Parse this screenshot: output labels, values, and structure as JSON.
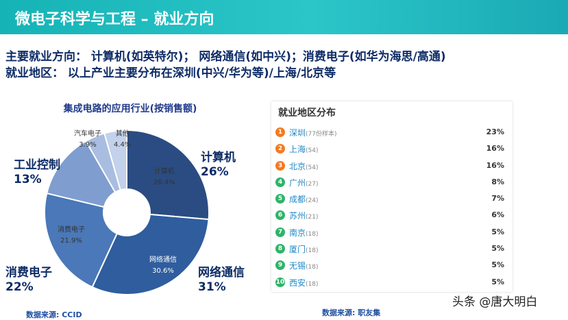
{
  "header": {
    "title": "微电子科学与工程 – 就业方向"
  },
  "intro": {
    "line1": "主要就业方向： 计算机(如英特尔)； 网络通信(如中兴)；消费电子(如华为海思/高通)",
    "line2": "就业地区： 以上产业主要分布在深圳(中兴/华为等)/上海/北京等"
  },
  "chart_data": [
    {
      "type": "pie",
      "variant": "donut",
      "title": "集成电路的应用行业(按销售额)",
      "slices": [
        {
          "label": "计算机",
          "value": 26.4,
          "value_text": "26.4%",
          "big_label": "计算机",
          "big_value": "26%",
          "color": "#2b4c82"
        },
        {
          "label": "网络通信",
          "value": 30.6,
          "value_text": "30.6%",
          "big_label": "网络通信",
          "big_value": "31%",
          "color": "#2f5d9e"
        },
        {
          "label": "消费电子",
          "value": 21.9,
          "value_text": "21.9%",
          "big_label": "消费电子",
          "big_value": "22%",
          "color": "#4a78b8"
        },
        {
          "label": "工业控制",
          "value": 13.0,
          "value_text": "",
          "big_label": "工业控制",
          "big_value": "13%",
          "color": "#7f9dcf"
        },
        {
          "label": "汽车电子",
          "value": 3.9,
          "value_text": "3.9%",
          "big_label": "",
          "big_value": "",
          "color": "#a9bde0"
        },
        {
          "label": "其他",
          "value": 4.4,
          "value_text": "4.4%",
          "big_label": "",
          "big_value": "",
          "color": "#c3d1ea"
        }
      ],
      "source": "数据来源: CCID"
    },
    {
      "type": "table",
      "title": "就业地区分布",
      "columns": [
        "rank",
        "city",
        "samples",
        "percent"
      ],
      "rows": [
        {
          "rank": "1",
          "city": "深圳",
          "samples": "(77份样本)",
          "percent": "23%"
        },
        {
          "rank": "2",
          "city": "上海",
          "samples": "(54)",
          "percent": "16%"
        },
        {
          "rank": "3",
          "city": "北京",
          "samples": "(54)",
          "percent": "16%"
        },
        {
          "rank": "4",
          "city": "广州",
          "samples": "(27)",
          "percent": "8%"
        },
        {
          "rank": "5",
          "city": "成都",
          "samples": "(24)",
          "percent": "7%"
        },
        {
          "rank": "6",
          "city": "苏州",
          "samples": "(21)",
          "percent": "6%"
        },
        {
          "rank": "7",
          "city": "南京",
          "samples": "(18)",
          "percent": "5%"
        },
        {
          "rank": "8",
          "city": "厦门",
          "samples": "(18)",
          "percent": "5%"
        },
        {
          "rank": "9",
          "city": "无锡",
          "samples": "(18)",
          "percent": "5%"
        },
        {
          "rank": "10",
          "city": "西安",
          "samples": "(18)",
          "percent": "5%"
        }
      ],
      "badge_colors": {
        "top3": "#f47a20",
        "rest": "#2fb36b"
      },
      "source": "数据来源: 职友集"
    }
  ],
  "watermark": {
    "text": "头条 @唐大明白"
  }
}
